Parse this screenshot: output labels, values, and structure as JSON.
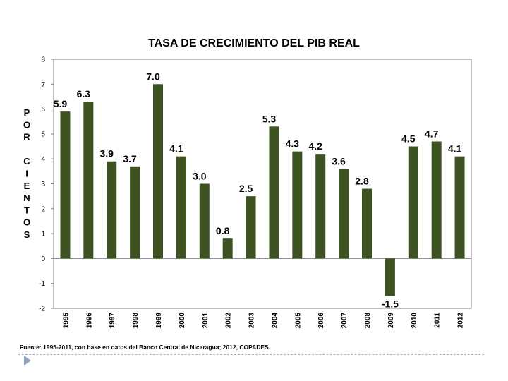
{
  "chart_data": {
    "type": "bar",
    "title": "TASA DE CRECIMIENTO DEL PIB REAL",
    "ylabel": "POR CIENTOS",
    "ylabel_lines": [
      "POR",
      "CIENTOS"
    ],
    "xlabel": "",
    "categories": [
      "1995",
      "1996",
      "1997",
      "1998",
      "1999",
      "2000",
      "2001",
      "2002",
      "2003",
      "2004",
      "2005",
      "2006",
      "2007",
      "2008",
      "2009",
      "2010",
      "2011",
      "2012"
    ],
    "values": [
      5.9,
      6.3,
      3.9,
      3.7,
      7.0,
      4.1,
      3.0,
      0.8,
      2.5,
      5.3,
      4.3,
      4.2,
      3.6,
      2.8,
      -1.5,
      4.5,
      4.7,
      4.1
    ],
    "value_labels": [
      "5.9",
      "6.3",
      "3.9",
      "3.7",
      "7.0",
      "4.1",
      "3.0",
      "0.8",
      "2.5",
      "5.3",
      "4.3",
      "4.2",
      "3.6",
      "2.8",
      "-1.5",
      "4.5",
      "4.7",
      "4.1"
    ],
    "ylim": [
      -2,
      8
    ],
    "yticks": [
      -2,
      -1,
      0,
      1,
      2,
      3,
      4,
      5,
      6,
      7,
      8
    ],
    "grid": false,
    "legend": "none",
    "bar_color": "#3d5422"
  },
  "source_note": "Fuente: 1995-2011, con base en datos del Banco Central de Nicaragua; 2012, COPADES.",
  "colors": {
    "bar": "#3d5422",
    "axis": "#808080",
    "footer_accent": "#8ea6c0"
  }
}
